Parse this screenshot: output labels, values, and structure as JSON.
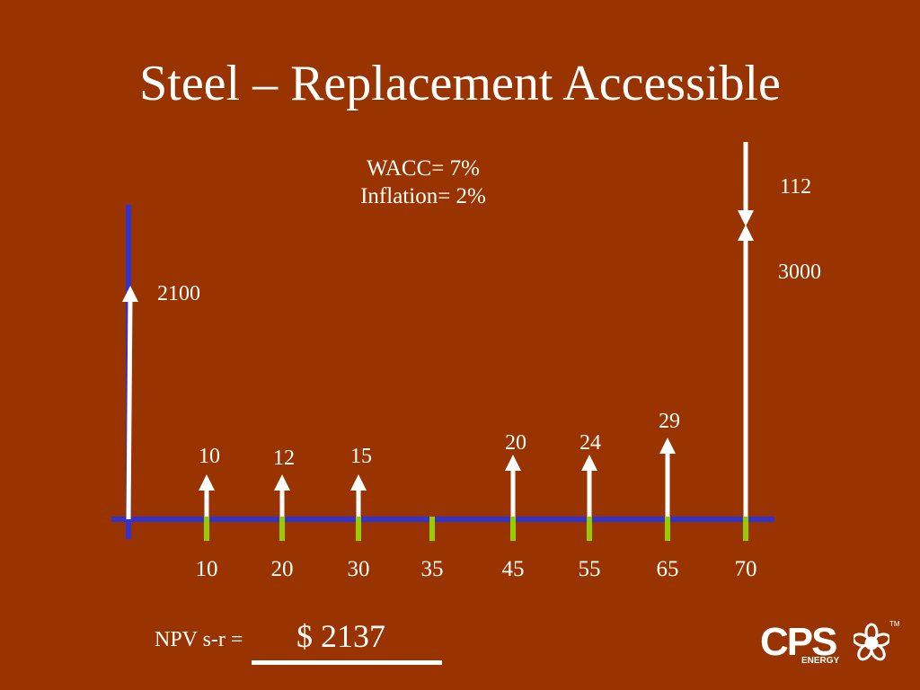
{
  "title": "Steel – Replacement Accessible",
  "parameters": {
    "wacc": "WACC= 7%",
    "inflation": "Inflation= 2%"
  },
  "colors": {
    "background": "#993300",
    "axis": "#3333cc",
    "tick": "#99cc00",
    "arrow": "#ffffff"
  },
  "initial_cost": "2100",
  "cash_flows": [
    {
      "year": "10",
      "value": "10"
    },
    {
      "year": "20",
      "value": "12"
    },
    {
      "year": "30",
      "value": "15"
    },
    {
      "year": "35",
      "value": ""
    },
    {
      "year": "45",
      "value": "20"
    },
    {
      "year": "55",
      "value": "24"
    },
    {
      "year": "65",
      "value": "29"
    },
    {
      "year": "70",
      "value": "3000"
    }
  ],
  "end_salvage": "112",
  "npv": {
    "label": "NPV s-r =",
    "value": "$ 2137"
  },
  "logo": {
    "text": "CPS",
    "subtext": "ENERGY",
    "tm": "TM",
    "icon": "star-flower-icon"
  }
}
